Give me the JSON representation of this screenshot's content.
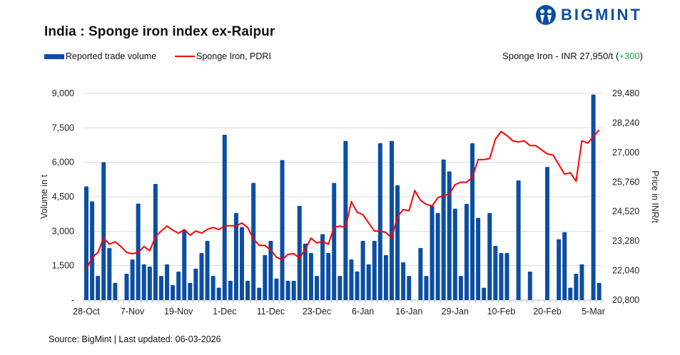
{
  "brand": {
    "name": "BIGMINT",
    "color": "#0b4ea2"
  },
  "title": "India : Sponge iron index ex-Raipur",
  "legend": {
    "bar": "Reported trade volume",
    "line": "Sponge Iron, PDRI"
  },
  "headline": {
    "prefix": "Sponge Iron - INR 27,950/t (",
    "change": "+300",
    "suffix": ")",
    "change_color": "#2aa84a"
  },
  "source": "Source: BigMint | Last updated: 06-03-2026",
  "chart_data": {
    "type": "bar+line",
    "title": "India : Sponge iron index ex-Raipur",
    "ylabel": "Volume in t",
    "y2label": "Price in INR/t",
    "ylim": [
      0,
      9000
    ],
    "y2lim": [
      20800,
      29480
    ],
    "yticks": [
      "-",
      "1,500",
      "3,000",
      "4,500",
      "6,000",
      "7,500",
      "9,000"
    ],
    "y2ticks": [
      "20,800",
      "22,040",
      "23,280",
      "24,520",
      "25,760",
      "27,000",
      "28,240",
      "29,480"
    ],
    "xtick_labels": [
      "28-Oct",
      "7-Nov",
      "19-Nov",
      "1-Dec",
      "11-Dec",
      "23-Dec",
      "6-Jan",
      "16-Jan",
      "29-Jan",
      "10-Feb",
      "20-Feb",
      "5-Mar"
    ],
    "xtick_every": 8,
    "grid": true,
    "legend_position": "top-left",
    "colors": {
      "bar": "#0b4ea2",
      "line": "#ff0000",
      "grid": "#d9d9d9"
    },
    "series": [
      {
        "name": "Reported trade volume",
        "type": "bar",
        "axis": "left",
        "values": [
          4950,
          4300,
          1060,
          6000,
          2270,
          750,
          null,
          1150,
          1770,
          4200,
          1560,
          1460,
          5060,
          1050,
          1560,
          650,
          1240,
          3070,
          750,
          1370,
          2050,
          2580,
          1050,
          540,
          7200,
          840,
          3790,
          3180,
          840,
          5100,
          540,
          1960,
          2580,
          940,
          6100,
          840,
          840,
          4100,
          2460,
          2050,
          1050,
          2870,
          2050,
          5100,
          1050,
          6930,
          1770,
          1250,
          2580,
          1560,
          2580,
          6830,
          1960,
          6930,
          5000,
          1650,
          1050,
          null,
          2270,
          1050,
          4100,
          3790,
          6120,
          5600,
          3980,
          1050,
          4190,
          6830,
          3580,
          540,
          3790,
          2360,
          2050,
          2050,
          null,
          5210,
          null,
          1240,
          null,
          null,
          5800,
          null,
          2650,
          2960,
          540,
          1150,
          1560,
          null,
          8950,
          750
        ]
      },
      {
        "name": "Sponge Iron, PDRI",
        "type": "line",
        "axis": "right",
        "values": [
          22100,
          22580,
          22800,
          23400,
          23150,
          23250,
          23050,
          22800,
          22750,
          22800,
          23050,
          22870,
          23460,
          23700,
          23910,
          23740,
          23610,
          23760,
          23520,
          23700,
          23610,
          23770,
          23850,
          23760,
          23920,
          23920,
          23920,
          24040,
          23850,
          23370,
          23100,
          23100,
          22900,
          22600,
          22500,
          22720,
          22750,
          22570,
          22930,
          23400,
          23200,
          23270,
          23140,
          23850,
          23910,
          23850,
          24940,
          24490,
          24390,
          24040,
          23700,
          23700,
          23640,
          23400,
          24300,
          24600,
          24550,
          25400,
          24990,
          24820,
          24750,
          25100,
          25190,
          25250,
          25650,
          25750,
          25750,
          25950,
          26700,
          26700,
          26740,
          27560,
          27880,
          27710,
          27490,
          27440,
          27490,
          27290,
          27290,
          27110,
          26940,
          26890,
          26490,
          26090,
          26150,
          25790,
          27490,
          27390,
          27660,
          27950
        ]
      }
    ]
  }
}
